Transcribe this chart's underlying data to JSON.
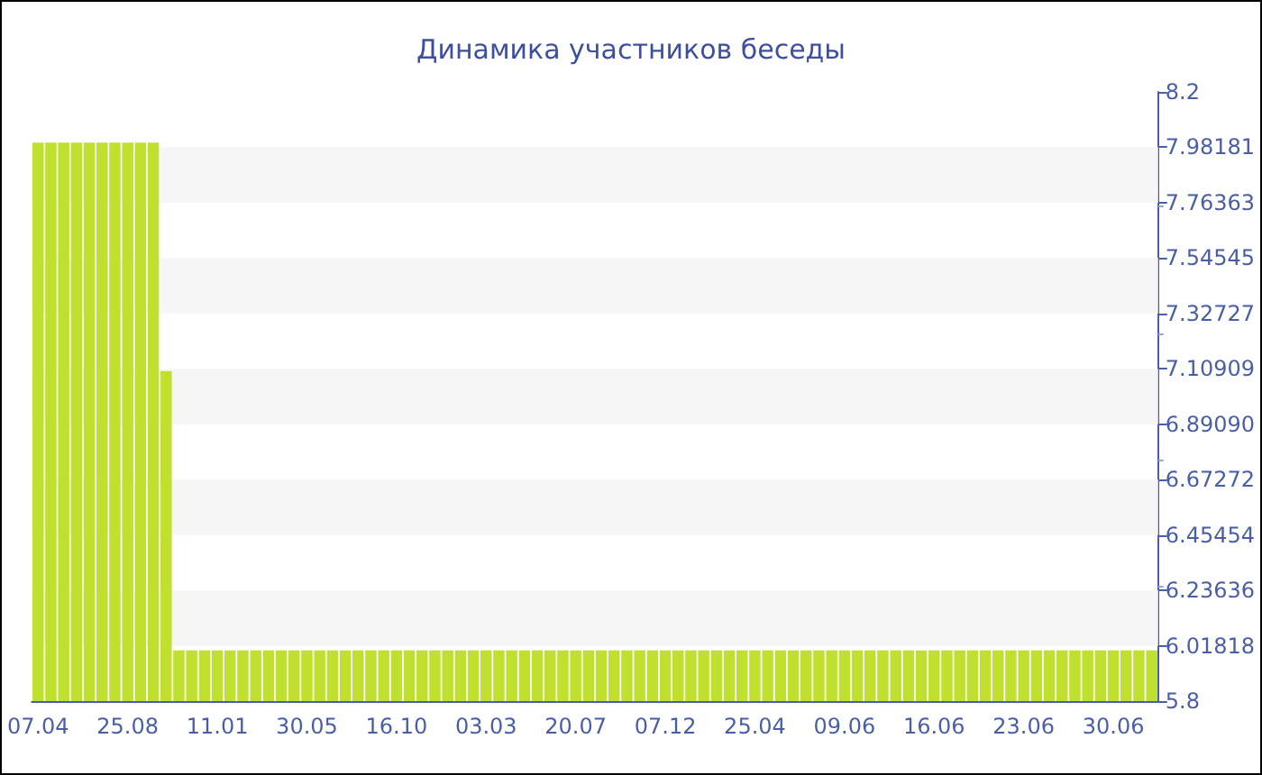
{
  "chart_data": {
    "type": "bar",
    "title": "Динамика участников беседы",
    "categories": [
      "07.04",
      null,
      null,
      null,
      null,
      null,
      null,
      "25.08",
      null,
      null,
      null,
      null,
      null,
      null,
      "11.01",
      null,
      null,
      null,
      null,
      null,
      null,
      "30.05",
      null,
      null,
      null,
      null,
      null,
      null,
      "16.10",
      null,
      null,
      null,
      null,
      null,
      null,
      "03.03",
      null,
      null,
      null,
      null,
      null,
      null,
      "20.07",
      null,
      null,
      null,
      null,
      null,
      null,
      "07.12",
      null,
      null,
      null,
      null,
      null,
      null,
      "25.04",
      null,
      null,
      null,
      null,
      null,
      null,
      "09.06",
      null,
      null,
      null,
      null,
      null,
      null,
      "16.06",
      null,
      null,
      null,
      null,
      null,
      null,
      "23.06",
      null,
      null,
      null,
      null,
      null,
      null,
      "30.06",
      null,
      null,
      null
    ],
    "values": [
      8,
      8,
      8,
      8,
      8,
      8,
      8,
      8,
      8,
      8,
      7.1,
      6,
      6,
      6,
      6,
      6,
      6,
      6,
      6,
      6,
      6,
      6,
      6,
      6,
      6,
      6,
      6,
      6,
      6,
      6,
      6,
      6,
      6,
      6,
      6,
      6,
      6,
      6,
      6,
      6,
      6,
      6,
      6,
      6,
      6,
      6,
      6,
      6,
      6,
      6,
      6,
      6,
      6,
      6,
      6,
      6,
      6,
      6,
      6,
      6,
      6,
      6,
      6,
      6,
      6,
      6,
      6,
      6,
      6,
      6,
      6,
      6,
      6,
      6,
      6,
      6,
      6,
      6,
      6,
      6,
      6,
      6,
      6,
      6,
      6,
      6,
      6,
      6
    ],
    "color": "#bfe02e",
    "ylim": [
      5.8,
      8.2
    ],
    "yticks": [
      5.8,
      6.01818,
      6.23636,
      6.45454,
      6.67272,
      {
        "value": 6.8909,
        "label": "6.89090"
      },
      7.10909,
      7.32727,
      7.54545,
      7.76363,
      7.98181,
      8.2
    ],
    "bands": [
      {
        "axis": "y",
        "from": 6.01818,
        "to": 6.23636,
        "color": "#f6f6f6"
      },
      {
        "axis": "y",
        "from": 6.45454,
        "to": 6.67272,
        "color": "#f6f6f6"
      },
      {
        "axis": "y",
        "from": 6.8909,
        "to": 7.10909,
        "color": "#f6f6f6"
      },
      {
        "axis": "y",
        "from": 7.32727,
        "to": 7.54545,
        "color": "#f6f6f6"
      },
      {
        "axis": "y",
        "from": 7.76363,
        "to": 7.98181,
        "color": "#f6f6f6"
      }
    ]
  }
}
